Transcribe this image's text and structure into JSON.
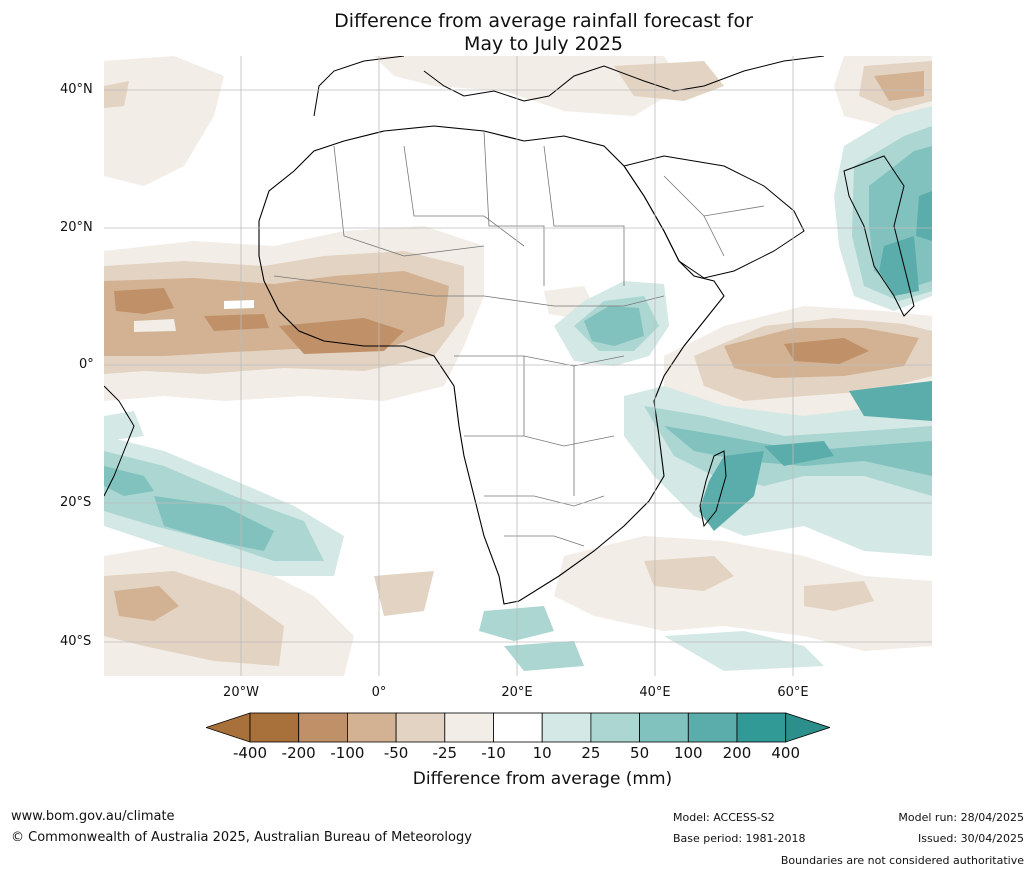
{
  "title_line1": "Difference from average rainfall forecast for",
  "title_line2": "May to July 2025",
  "lat_labels": [
    "40°N",
    "20°N",
    "0°",
    "20°S",
    "40°S"
  ],
  "lon_labels": [
    "20°W",
    "0°",
    "20°E",
    "40°E",
    "60°E"
  ],
  "colorbar": {
    "ticks": [
      "-400",
      "-200",
      "-100",
      "-50",
      "-25",
      "-10",
      "10",
      "25",
      "50",
      "100",
      "200",
      "400"
    ],
    "colors": [
      "#a8703a",
      "#c09068",
      "#d2b292",
      "#e3d3c2",
      "#f2ede6",
      "#ffffff",
      "#d4e8e5",
      "#abd6d2",
      "#82c2be",
      "#5aadaa",
      "#319a96"
    ],
    "extend_low_color": "#a8703a",
    "extend_high_color": "#2d8f8b",
    "label": "Difference from average (mm)"
  },
  "footer": {
    "url": "www.bom.gov.au/climate",
    "copyright": "© Commonwealth of Australia 2025, Australian Bureau of Meteorology",
    "model": "Model: ACCESS-S2",
    "base_period": "Base period: 1981-2018",
    "model_run": "Model run: 28/04/2025",
    "issued": "Issued: 30/04/2025",
    "disclaimer": "Boundaries are not considered authoritative"
  }
}
